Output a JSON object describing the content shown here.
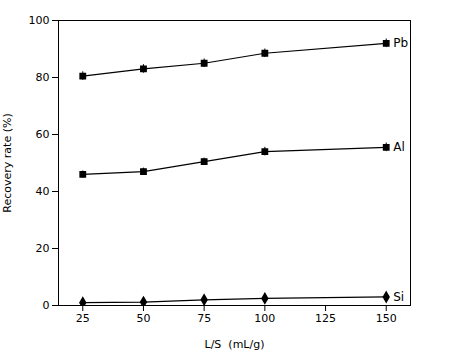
{
  "chart_data": {
    "type": "line",
    "x": [
      25,
      50,
      75,
      100,
      150
    ],
    "series": [
      {
        "name": "Pb",
        "color": "#000000",
        "marker": "square",
        "values": [
          80.5,
          83.0,
          85.0,
          88.5,
          92.0
        ],
        "errors": [
          1.5,
          1.5,
          1.5,
          1.5,
          1.5
        ]
      },
      {
        "name": "Al",
        "color": "#000000",
        "marker": "square",
        "values": [
          46.0,
          47.0,
          50.5,
          54.0,
          55.5
        ],
        "errors": [
          1.2,
          1.2,
          1.2,
          1.5,
          1.5
        ]
      },
      {
        "name": "Si",
        "color": "#000000",
        "marker": "diamond",
        "values": [
          1.0,
          1.2,
          2.0,
          2.5,
          3.0
        ],
        "errors": [
          0.3,
          0.3,
          0.3,
          0.3,
          0.3
        ]
      }
    ],
    "xlabel": "L/S  (mL/g)",
    "ylabel": "Recovery rate (%)",
    "xlim": [
      15,
      160
    ],
    "ylim": [
      0,
      100
    ],
    "xticks": [
      25,
      50,
      75,
      100,
      125,
      150
    ],
    "yticks": [
      0,
      20,
      40,
      60,
      80,
      100
    ],
    "grid": false
  }
}
